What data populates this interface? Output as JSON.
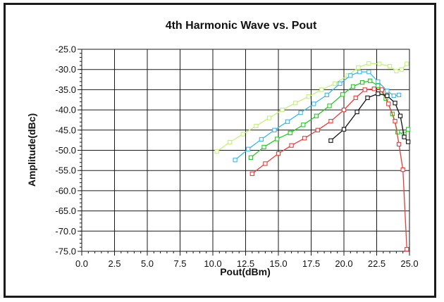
{
  "chart_data": {
    "type": "line",
    "title": "4th Harmonic Wave  vs. Pout",
    "xlabel": "Pout(dBm)",
    "ylabel": "Amplitude(dBc)",
    "xlim": [
      0,
      25
    ],
    "ylim": [
      -75,
      -25
    ],
    "xticks": [
      "0.0",
      "2.5",
      "5.0",
      "7.5",
      "10.0",
      "12.5",
      "15.0",
      "17.5",
      "20.0",
      "22.5",
      "25.0"
    ],
    "yticks": [
      "-25.0",
      "-30.0",
      "-35.0",
      "-40.0",
      "-45.0",
      "-50.0",
      "-55.0",
      "-60.0",
      "-65.0",
      "-70.0",
      "-75.0"
    ],
    "grid": true,
    "series": [
      {
        "color": "#c5f07a",
        "x": [
          10.3,
          11.3,
          12.3,
          13.3,
          14.3,
          15.3,
          16.3,
          17.3,
          18.3,
          19.3,
          20.3,
          21.1,
          21.9,
          22.7,
          23.5,
          24.0,
          24.4,
          24.8
        ],
        "y": [
          -50.3,
          -48.0,
          -46.0,
          -44.0,
          -42.0,
          -40.0,
          -38.3,
          -36.7,
          -35.0,
          -33.5,
          -31.5,
          -29.5,
          -28.5,
          -28.6,
          -29.2,
          -30.4,
          -30.0,
          -28.6
        ]
      },
      {
        "color": "#3ab7f0",
        "x": [
          11.7,
          12.7,
          13.7,
          14.7,
          15.7,
          16.7,
          17.7,
          18.7,
          19.7,
          20.5,
          21.2,
          21.9,
          22.6,
          23.3,
          23.8,
          24.2
        ],
        "y": [
          -52.4,
          -49.7,
          -47.3,
          -45.0,
          -42.9,
          -40.7,
          -38.5,
          -36.3,
          -33.5,
          -31.5,
          -30.6,
          -30.6,
          -33.0,
          -35.3,
          -36.5,
          -36.3
        ]
      },
      {
        "color": "#22cc22",
        "x": [
          12.9,
          13.9,
          14.9,
          15.9,
          16.9,
          17.9,
          18.9,
          19.9,
          20.7,
          21.4,
          22.0,
          22.6,
          23.2,
          23.7,
          24.1,
          24.6,
          24.9
        ],
        "y": [
          -51.8,
          -49.2,
          -47.2,
          -45.7,
          -43.7,
          -41.5,
          -39.0,
          -36.2,
          -34.2,
          -33.2,
          -32.8,
          -34.0,
          -37.2,
          -41.0,
          -45.5,
          -46.0,
          -44.8
        ]
      },
      {
        "color": "#ee3a3a",
        "x": [
          13.0,
          14.0,
          15.0,
          16.0,
          17.0,
          18.0,
          19.0,
          20.0,
          20.9,
          21.6,
          22.3,
          22.9,
          23.4,
          23.9,
          24.2,
          24.5,
          24.8
        ],
        "y": [
          -55.8,
          -53.3,
          -50.8,
          -48.8,
          -47.0,
          -45.0,
          -42.8,
          -40.0,
          -37.0,
          -35.0,
          -34.8,
          -35.0,
          -38.5,
          -42.8,
          -48.5,
          -54.8,
          -74.5
        ]
      },
      {
        "color": "#111111",
        "x": [
          19.0,
          20.0,
          21.0,
          21.8,
          22.6,
          23.3,
          23.9,
          24.3,
          24.6,
          24.9
        ],
        "y": [
          -47.6,
          -44.8,
          -40.5,
          -37.0,
          -36.0,
          -36.5,
          -38.3,
          -41.5,
          -46.7,
          -47.9
        ]
      }
    ]
  }
}
